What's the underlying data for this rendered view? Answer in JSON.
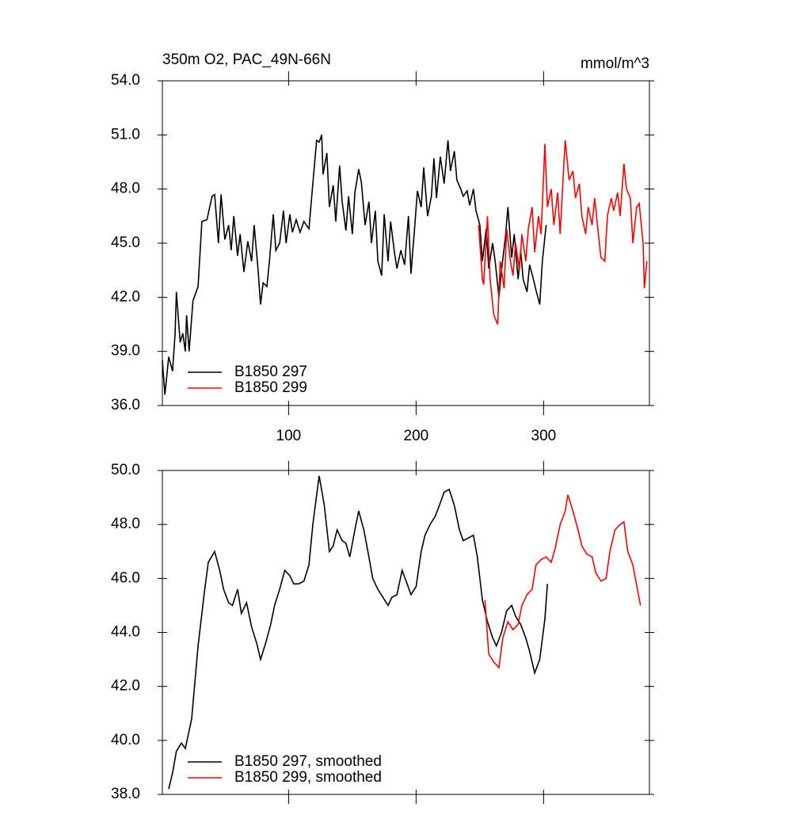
{
  "chart_data": [
    {
      "type": "line",
      "title": "350m O2, PAC_49N-66N",
      "right_title": "mmol/m^3",
      "xlim": [
        1,
        383
      ],
      "xticks": [
        100,
        200,
        300
      ],
      "ylim": [
        36,
        54
      ],
      "yticks": [
        {
          "value": 36,
          "label": "36.0"
        },
        {
          "value": 39,
          "label": "39.0"
        },
        {
          "value": 42,
          "label": "42.0"
        },
        {
          "value": 45,
          "label": "45.0"
        },
        {
          "value": 48,
          "label": "48.0"
        },
        {
          "value": 51,
          "label": "51.0"
        },
        {
          "value": 54,
          "label": "54.0"
        }
      ],
      "series": [
        {
          "name": "B1850 297",
          "color": "#000000",
          "x": [
            1,
            3,
            6,
            9,
            11,
            12,
            15,
            17,
            19,
            20,
            22,
            25,
            29,
            32,
            36,
            40,
            42,
            45,
            47,
            50,
            53,
            55,
            57,
            60,
            62,
            65,
            68,
            71,
            73,
            76,
            78,
            80,
            83,
            85,
            88,
            90,
            93,
            96,
            98,
            101,
            103,
            106,
            109,
            112,
            116,
            119,
            122,
            124,
            126,
            127,
            130,
            132,
            135,
            137,
            140,
            142,
            145,
            147,
            150,
            152,
            155,
            157,
            160,
            163,
            165,
            168,
            170,
            173,
            175,
            178,
            180,
            183,
            185,
            188,
            191,
            194,
            196,
            199,
            201,
            204,
            206,
            209,
            212,
            214,
            216,
            219,
            222,
            225,
            227,
            230,
            232,
            235,
            237,
            240,
            242,
            245,
            247,
            250,
            252,
            255,
            257,
            260,
            262,
            265,
            267,
            270,
            272,
            275,
            277,
            280,
            282,
            284,
            287,
            289,
            292,
            294,
            297,
            299,
            302
          ],
          "values": [
            38.5,
            36.6,
            38.7,
            37.9,
            40.0,
            42.3,
            39.5,
            40.0,
            39.0,
            41.0,
            39.0,
            41.8,
            42.6,
            46.2,
            46.3,
            47.6,
            47.7,
            45.0,
            47.7,
            45.2,
            46.0,
            44.6,
            46.5,
            44.3,
            45.5,
            43.4,
            45.1,
            44.0,
            46.0,
            43.6,
            41.6,
            42.8,
            42.6,
            44.0,
            46.6,
            44.6,
            45.0,
            46.8,
            45.0,
            46.6,
            45.6,
            46.3,
            45.6,
            46.2,
            45.8,
            48.3,
            50.7,
            50.6,
            51.0,
            48.8,
            50.0,
            47.0,
            48.2,
            46.2,
            49.3,
            47.3,
            45.7,
            47.6,
            45.5,
            47.8,
            49.1,
            48.4,
            46.0,
            47.3,
            45.0,
            46.8,
            44.0,
            43.2,
            46.6,
            44.0,
            46.2,
            44.5,
            43.6,
            44.6,
            43.8,
            46.5,
            43.3,
            46.0,
            47.9,
            47.0,
            49.2,
            46.5,
            47.6,
            49.7,
            47.5,
            49.8,
            48.3,
            50.7,
            49.0,
            50.1,
            48.5,
            48.0,
            47.6,
            47.9,
            47.1,
            48.0,
            46.8,
            46.0,
            44.0,
            45.8,
            43.6,
            45.0,
            44.0,
            42.0,
            43.5,
            45.3,
            47.0,
            44.2,
            45.5,
            43.0,
            44.6,
            43.0,
            42.3,
            43.8,
            43.0,
            42.4,
            41.6,
            44.0,
            46.0
          ]
        },
        {
          "name": "B1850 299",
          "color": "#ff0000",
          "x": [
            249,
            252,
            253,
            256,
            258,
            261,
            264,
            266,
            269,
            271,
            274,
            276,
            278,
            281,
            283,
            286,
            288,
            291,
            293,
            296,
            298,
            301,
            303,
            306,
            308,
            311,
            313,
            316,
            317,
            320,
            323,
            325,
            328,
            330,
            333,
            335,
            338,
            340,
            343,
            345,
            348,
            350,
            353,
            355,
            358,
            360,
            363,
            365,
            368,
            370,
            373,
            375,
            378,
            379,
            381
          ],
          "values": [
            46.0,
            43.0,
            42.7,
            46.5,
            43.0,
            41.0,
            40.5,
            44.0,
            42.5,
            45.8,
            44.0,
            43.2,
            45.0,
            43.5,
            45.5,
            44.0,
            45.8,
            47.0,
            44.5,
            46.5,
            45.5,
            50.5,
            47.0,
            48.0,
            46.0,
            47.8,
            45.5,
            49.5,
            50.7,
            48.5,
            49.0,
            47.5,
            48.3,
            46.5,
            45.5,
            47.0,
            46.0,
            47.5,
            45.5,
            44.2,
            44.0,
            46.5,
            47.5,
            46.8,
            47.8,
            46.5,
            49.4,
            48.0,
            47.5,
            45.0,
            47.0,
            47.2,
            45.0,
            42.5,
            44.0
          ]
        }
      ]
    },
    {
      "type": "line",
      "xlim": [
        1,
        383
      ],
      "xticks": [
        100,
        200,
        300
      ],
      "ylim": [
        38,
        50
      ],
      "yticks": [
        {
          "value": 38,
          "label": "38.0"
        },
        {
          "value": 40,
          "label": "40.0"
        },
        {
          "value": 42,
          "label": "42.0"
        },
        {
          "value": 44,
          "label": "44.0"
        },
        {
          "value": 46,
          "label": "46.0"
        },
        {
          "value": 48,
          "label": "48.0"
        },
        {
          "value": 50,
          "label": "50.0"
        }
      ],
      "series": [
        {
          "name": "B1850 297, smoothed",
          "color": "#000000",
          "x": [
            6,
            9,
            12,
            16,
            19,
            24,
            29,
            34,
            37,
            42,
            46,
            49,
            53,
            56,
            60,
            63,
            67,
            71,
            75,
            78,
            82,
            86,
            89,
            93,
            97,
            101,
            104,
            108,
            112,
            116,
            119,
            124,
            128,
            132,
            135,
            138,
            142,
            145,
            148,
            152,
            155,
            159,
            163,
            166,
            170,
            174,
            178,
            181,
            185,
            189,
            193,
            196,
            200,
            204,
            207,
            211,
            215,
            219,
            222,
            226,
            230,
            234,
            237,
            241,
            245,
            248,
            252,
            256,
            260,
            263,
            267,
            271,
            275,
            278,
            282,
            286,
            289,
            293,
            297,
            301,
            303
          ],
          "values": [
            38.2,
            38.8,
            39.6,
            39.9,
            39.7,
            40.8,
            43.5,
            45.5,
            46.6,
            47.0,
            46.3,
            45.6,
            45.1,
            45.0,
            45.6,
            44.7,
            45.1,
            44.2,
            43.6,
            43.0,
            43.6,
            44.3,
            45.0,
            45.6,
            46.3,
            46.1,
            45.8,
            45.8,
            45.9,
            46.5,
            48.0,
            49.8,
            48.7,
            47.0,
            47.2,
            47.8,
            47.4,
            47.3,
            46.8,
            47.8,
            48.5,
            47.8,
            46.8,
            46.0,
            45.6,
            45.3,
            45.0,
            45.3,
            45.4,
            46.3,
            45.8,
            45.4,
            45.7,
            47.0,
            47.6,
            48.0,
            48.3,
            48.8,
            49.2,
            49.3,
            48.7,
            47.8,
            47.4,
            47.5,
            47.6,
            46.8,
            45.2,
            44.4,
            43.8,
            43.5,
            44.0,
            44.8,
            45.0,
            44.6,
            44.3,
            43.8,
            43.3,
            42.5,
            43.0,
            44.5,
            45.8
          ]
        },
        {
          "name": "B1850 299, smoothed",
          "color": "#ff0000",
          "x": [
            254,
            257,
            261,
            265,
            268,
            272,
            276,
            280,
            283,
            287,
            291,
            294,
            298,
            302,
            306,
            309,
            313,
            317,
            319,
            323,
            327,
            330,
            334,
            338,
            341,
            345,
            349,
            352,
            356,
            360,
            363,
            366,
            370,
            374,
            376
          ],
          "values": [
            45.2,
            43.2,
            42.9,
            42.7,
            43.8,
            44.4,
            44.1,
            44.3,
            45.0,
            45.4,
            45.6,
            46.5,
            46.7,
            46.8,
            46.6,
            47.1,
            48.0,
            48.5,
            49.1,
            48.5,
            47.8,
            47.2,
            46.9,
            46.8,
            46.2,
            45.9,
            46.0,
            47.0,
            47.8,
            48.0,
            48.1,
            47.0,
            46.5,
            45.5,
            45.0
          ]
        }
      ]
    }
  ]
}
